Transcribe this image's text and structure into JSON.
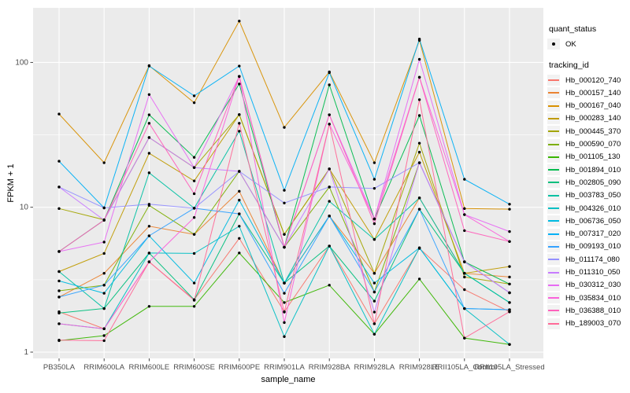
{
  "figure": {
    "background": "#FFFFFF",
    "panel_background": "#EBEBEB",
    "grid_color": "#FFFFFF",
    "point_color": "#000000",
    "tick_mark_color": "#333333",
    "tick_label_color": "#4D4D4D"
  },
  "axes": {
    "y_label": "FPKM + 1",
    "x_label": "sample_name",
    "y_tick_labels": [
      "1",
      "10",
      "100"
    ]
  },
  "legend": {
    "quant_title": "quant_status",
    "quant_items": [
      {
        "label": "OK",
        "marker": "point"
      }
    ],
    "tracking_title": "tracking_id"
  },
  "chart_data": {
    "type": "line",
    "title": "",
    "xlabel": "sample_name",
    "ylabel": "FPKM + 1",
    "y_scale": "log10",
    "ylim": [
      1,
      240
    ],
    "y_ticks": [
      1,
      10,
      100
    ],
    "grid": "on",
    "legend_position": "right",
    "point_marker": {
      "shape": "circle",
      "color": "#000000"
    },
    "categories": [
      "PB350LA",
      "RRIM600LA",
      "RRIM600LE",
      "RRIM600SE",
      "RRIM600PE",
      "RRIM901LA",
      "RRIM928BA",
      "RRIM928LA",
      "RRIM928LE",
      "RRII105LA_Control",
      "RRII105LA_Stressed"
    ],
    "series": [
      {
        "name": "Hb_000120_740",
        "color": "#F8766D",
        "values": [
          1.9,
          1.45,
          4.2,
          2.3,
          6.1,
          1.9,
          5.4,
          1.57,
          5.2,
          2.7,
          1.9
        ]
      },
      {
        "name": "Hb_000157_140",
        "color": "#EA8331",
        "values": [
          2.4,
          3.5,
          7.4,
          6.5,
          12.9,
          3.0,
          8.7,
          3.5,
          11.6,
          3.5,
          3.3
        ]
      },
      {
        "name": "Hb_000167_040",
        "color": "#D89000",
        "values": [
          44,
          20.3,
          95,
          52.7,
          193,
          35.6,
          86,
          20.3,
          142,
          9.8,
          9.7
        ]
      },
      {
        "name": "Hb_000283_140",
        "color": "#C09B00",
        "values": [
          3.6,
          4.8,
          23.6,
          15.2,
          43.6,
          6.5,
          18.4,
          6.0,
          24,
          3.5,
          3.9
        ]
      },
      {
        "name": "Hb_000445_370",
        "color": "#A3A500",
        "values": [
          9.8,
          8.2,
          30.3,
          18.8,
          43.6,
          6.5,
          18.4,
          3.5,
          27.7,
          3.3,
          2.95
        ]
      },
      {
        "name": "Hb_000590_070",
        "color": "#7CAE00",
        "values": [
          2.65,
          2.9,
          10.3,
          6.5,
          17.7,
          5.3,
          13.8,
          2.6,
          20.3,
          4.2,
          2.57
        ]
      },
      {
        "name": "Hb_001105_130",
        "color": "#39B600",
        "values": [
          1.2,
          1.3,
          2.07,
          2.07,
          4.84,
          2.2,
          2.9,
          1.33,
          3.2,
          1.25,
          1.13
        ]
      },
      {
        "name": "Hb_001894_010",
        "color": "#00BB4E",
        "values": [
          4.95,
          8.15,
          43.5,
          22.1,
          71,
          5.3,
          70,
          8.3,
          43,
          4.2,
          2.95
        ]
      },
      {
        "name": "Hb_002805_090",
        "color": "#00BF7D",
        "values": [
          1.86,
          2.0,
          4.83,
          2.3,
          9.0,
          3.0,
          5.4,
          2.25,
          9.7,
          3.5,
          2.2
        ]
      },
      {
        "name": "Hb_003783_050",
        "color": "#00C1A3",
        "values": [
          3.6,
          2.0,
          17.3,
          9.85,
          33.5,
          3.0,
          11.0,
          6.0,
          11.6,
          3.5,
          2.2
        ]
      },
      {
        "name": "Hb_004326_010",
        "color": "#00BFC4",
        "values": [
          1.57,
          1.45,
          4.83,
          4.8,
          7.4,
          1.28,
          5.4,
          1.33,
          5.25,
          2.0,
          1.13
        ]
      },
      {
        "name": "Hb_006736_050",
        "color": "#00BAE0",
        "values": [
          3.1,
          2.55,
          6.35,
          3.0,
          11.2,
          3.0,
          8.7,
          3.0,
          5.25,
          2.0,
          1.96
        ]
      },
      {
        "name": "Hb_007317_020",
        "color": "#00B0F6",
        "values": [
          20.8,
          9.9,
          94.4,
          58.8,
          94.4,
          13.1,
          85,
          15.6,
          145,
          15.6,
          10.5
        ]
      },
      {
        "name": "Hb_009193_010",
        "color": "#35A2FF",
        "values": [
          2.4,
          2.9,
          6.35,
          9.85,
          9.0,
          2.55,
          8.7,
          2.6,
          9.7,
          2.0,
          1.96
        ]
      },
      {
        "name": "Hb_011174_080",
        "color": "#9590FF",
        "values": [
          13.8,
          9.9,
          10.5,
          9.85,
          17.7,
          10.7,
          13.8,
          13.5,
          20.3,
          4.2,
          2.57
        ]
      },
      {
        "name": "Hb_011310_050",
        "color": "#C77CFF",
        "values": [
          13.8,
          8.15,
          30.3,
          18.8,
          17.7,
          5.3,
          18.4,
          1.89,
          20.3,
          4.2,
          2.57
        ]
      },
      {
        "name": "Hb_030312_030",
        "color": "#E76BF3",
        "values": [
          4.95,
          5.75,
          60,
          18.8,
          80,
          5.3,
          43.5,
          8.3,
          105,
          8.9,
          6.8
        ]
      },
      {
        "name": "Hb_035834_010",
        "color": "#FA62DB",
        "values": [
          1.57,
          1.45,
          4.2,
          8.5,
          80,
          1.6,
          37.5,
          8.3,
          79,
          8.9,
          5.8
        ]
      },
      {
        "name": "Hb_036388_010",
        "color": "#FF62BC",
        "values": [
          4.95,
          8.15,
          38,
          12.4,
          80,
          5.3,
          43.5,
          7.7,
          79,
          6.9,
          5.8
        ]
      },
      {
        "name": "Hb_189003_070",
        "color": "#FF6A98",
        "values": [
          1.21,
          1.2,
          4.2,
          2.28,
          38,
          1.89,
          37.5,
          1.57,
          55.3,
          1.25,
          1.9
        ]
      }
    ]
  }
}
